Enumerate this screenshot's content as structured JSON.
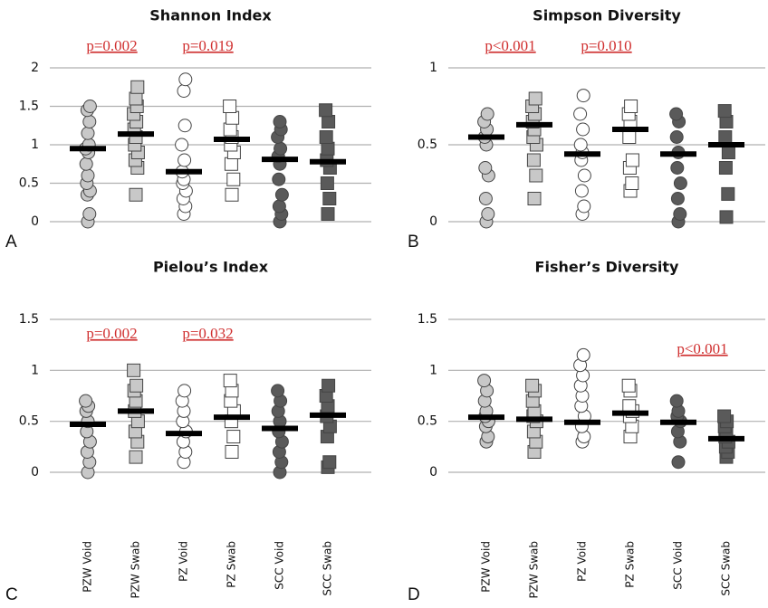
{
  "chart_data": [
    {
      "type": "strip",
      "title": "Shannon Index",
      "panel_label": "A",
      "ylim": [
        0,
        2
      ],
      "yticks": [
        0,
        0.5,
        1,
        1.5,
        2
      ],
      "grid": true,
      "colors": [
        "#c8c8c8",
        "#c8c8c8",
        "#ffffff",
        "#ffffff",
        "#5a5a5a",
        "#5a5a5a"
      ],
      "markers": [
        "circle",
        "square",
        "circle",
        "square",
        "circle",
        "square"
      ],
      "groups": [
        {
          "points": [
            0,
            0.1,
            0.35,
            0.4,
            0.5,
            0.6,
            0.75,
            0.9,
            0.95,
            1.0,
            1.15,
            1.3,
            1.45,
            1.5
          ],
          "mean": 0.95
        },
        {
          "points": [
            0.35,
            0.7,
            0.8,
            0.9,
            1.0,
            1.1,
            1.2,
            1.3,
            1.4,
            1.5,
            1.6,
            1.75
          ],
          "mean": 1.14
        },
        {
          "points": [
            0.1,
            0.2,
            0.3,
            0.4,
            0.5,
            0.55,
            0.65,
            0.8,
            1.0,
            1.25,
            1.7,
            1.85
          ],
          "mean": 0.65
        },
        {
          "points": [
            0.35,
            0.55,
            0.75,
            0.9,
            1.0,
            1.1,
            1.2,
            1.35,
            1.5
          ],
          "mean": 1.07
        },
        {
          "points": [
            0,
            0.1,
            0.2,
            0.35,
            0.55,
            0.75,
            0.85,
            0.95,
            1.1,
            1.2,
            1.3
          ],
          "mean": 0.81
        },
        {
          "points": [
            0.1,
            0.3,
            0.5,
            0.7,
            0.8,
            0.95,
            1.1,
            1.3,
            1.45
          ],
          "mean": 0.78
        }
      ],
      "annotations": [
        {
          "text": "p=0.002",
          "span": [
            0,
            1
          ]
        },
        {
          "text": "p=0.019",
          "span": [
            2,
            3
          ]
        }
      ]
    },
    {
      "type": "strip",
      "title": "Simpson Diversity",
      "panel_label": "B",
      "ylim": [
        0,
        1
      ],
      "yticks": [
        0,
        0.5,
        1
      ],
      "grid": true,
      "colors": [
        "#c8c8c8",
        "#c8c8c8",
        "#ffffff",
        "#ffffff",
        "#5a5a5a",
        "#5a5a5a"
      ],
      "markers": [
        "circle",
        "square",
        "circle",
        "square",
        "circle",
        "square"
      ],
      "groups": [
        {
          "points": [
            0,
            0.05,
            0.15,
            0.3,
            0.35,
            0.5,
            0.55,
            0.6,
            0.65,
            0.7
          ],
          "mean": 0.55
        },
        {
          "points": [
            0.15,
            0.3,
            0.4,
            0.5,
            0.55,
            0.6,
            0.65,
            0.7,
            0.75,
            0.8
          ],
          "mean": 0.63
        },
        {
          "points": [
            0.05,
            0.1,
            0.2,
            0.3,
            0.4,
            0.45,
            0.5,
            0.6,
            0.7,
            0.82
          ],
          "mean": 0.44
        },
        {
          "points": [
            0.2,
            0.25,
            0.35,
            0.4,
            0.55,
            0.65,
            0.7,
            0.75
          ],
          "mean": 0.6
        },
        {
          "points": [
            0,
            0.05,
            0.15,
            0.25,
            0.35,
            0.45,
            0.55,
            0.65,
            0.7
          ],
          "mean": 0.44
        },
        {
          "points": [
            0.03,
            0.18,
            0.35,
            0.45,
            0.55,
            0.65,
            0.72
          ],
          "mean": 0.5
        }
      ],
      "annotations": [
        {
          "text": "p<0.001",
          "span": [
            0,
            1
          ]
        },
        {
          "text": "p=0.010",
          "span": [
            2,
            3
          ]
        }
      ]
    },
    {
      "type": "strip",
      "title": "Pielou’s Index",
      "panel_label": "C",
      "categories": [
        "PZW Void",
        "PZW Swab",
        "PZ Void",
        "PZ Swab",
        "SCC Void",
        "SCC Swab"
      ],
      "ylim": [
        0,
        1.5
      ],
      "yticks": [
        0,
        0.5,
        1,
        1.5
      ],
      "grid": true,
      "colors": [
        "#c8c8c8",
        "#c8c8c8",
        "#ffffff",
        "#ffffff",
        "#5a5a5a",
        "#5a5a5a"
      ],
      "markers": [
        "circle",
        "square",
        "circle",
        "square",
        "circle",
        "square"
      ],
      "groups": [
        {
          "points": [
            0,
            0.1,
            0.2,
            0.3,
            0.4,
            0.5,
            0.6,
            0.65,
            0.7
          ],
          "mean": 0.47
        },
        {
          "points": [
            0.15,
            0.3,
            0.4,
            0.5,
            0.6,
            0.7,
            0.8,
            0.85,
            1.0
          ],
          "mean": 0.6
        },
        {
          "points": [
            0.1,
            0.2,
            0.3,
            0.4,
            0.5,
            0.6,
            0.7,
            0.8
          ],
          "mean": 0.38
        },
        {
          "points": [
            0.2,
            0.35,
            0.5,
            0.6,
            0.7,
            0.8,
            0.9
          ],
          "mean": 0.54
        },
        {
          "points": [
            0,
            0.1,
            0.2,
            0.3,
            0.4,
            0.5,
            0.6,
            0.7,
            0.8
          ],
          "mean": 0.43
        },
        {
          "points": [
            0.05,
            0.1,
            0.35,
            0.45,
            0.55,
            0.65,
            0.75,
            0.85
          ],
          "mean": 0.56
        }
      ],
      "annotations": [
        {
          "text": "p=0.002",
          "span": [
            0,
            1
          ]
        },
        {
          "text": "p=0.032",
          "span": [
            2,
            3
          ]
        }
      ]
    },
    {
      "type": "strip",
      "title": "Fisher’s Diversity",
      "panel_label": "D",
      "categories": [
        "PZW Void",
        "PZW Swab",
        "PZ Void",
        "PZ Swab",
        "SCC Void",
        "SCC Swab"
      ],
      "ylim": [
        0,
        1.5
      ],
      "yticks": [
        0,
        0.5,
        1,
        1.5
      ],
      "grid": true,
      "colors": [
        "#c8c8c8",
        "#c8c8c8",
        "#ffffff",
        "#ffffff",
        "#5a5a5a",
        "#5a5a5a"
      ],
      "markers": [
        "circle",
        "square",
        "circle",
        "square",
        "circle",
        "square"
      ],
      "groups": [
        {
          "points": [
            0.3,
            0.35,
            0.45,
            0.5,
            0.55,
            0.6,
            0.7,
            0.8,
            0.9
          ],
          "mean": 0.54
        },
        {
          "points": [
            0.2,
            0.3,
            0.4,
            0.5,
            0.55,
            0.6,
            0.7,
            0.8,
            0.85
          ],
          "mean": 0.52
        },
        {
          "points": [
            0.3,
            0.35,
            0.45,
            0.55,
            0.65,
            0.75,
            0.85,
            0.95,
            1.05,
            1.15
          ],
          "mean": 0.49
        },
        {
          "points": [
            0.35,
            0.45,
            0.55,
            0.6,
            0.65,
            0.8,
            0.85
          ],
          "mean": 0.58
        },
        {
          "points": [
            0.1,
            0.3,
            0.4,
            0.5,
            0.55,
            0.6,
            0.7
          ],
          "mean": 0.49
        },
        {
          "points": [
            0.15,
            0.2,
            0.25,
            0.3,
            0.35,
            0.4,
            0.45,
            0.5,
            0.55
          ],
          "mean": 0.33
        }
      ],
      "annotations": [
        {
          "text": "p<0.001",
          "span": [
            4,
            5
          ]
        }
      ]
    }
  ]
}
